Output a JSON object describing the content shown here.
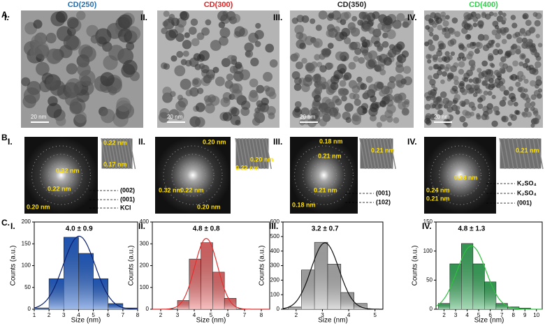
{
  "panel_labels": {
    "a": "A.",
    "b": "B.",
    "c": "C."
  },
  "panel_a": [
    {
      "title": "CD(250)",
      "title_color": "#1f6fb5",
      "numeral": "I.",
      "scale_bar": "20 nm"
    },
    {
      "title": "CD(300)",
      "title_color": "#e02020",
      "numeral": "II.",
      "scale_bar": "20 nm"
    },
    {
      "title": "CD(350)",
      "title_color": "#222222",
      "numeral": "III.",
      "scale_bar": "20 nm"
    },
    {
      "title": "CD(400)",
      "title_color": "#2fd04a",
      "numeral": "IV.",
      "scale_bar": "20 nm"
    }
  ],
  "panel_b": [
    {
      "numeral": "I.",
      "labels": [
        "0.22 nm",
        "0.17 nm",
        "0.32 nm",
        "0.22 nm",
        "0.20 nm",
        "(002)",
        "(001)",
        "KCl"
      ]
    },
    {
      "numeral": "II.",
      "labels": [
        "0.20 nm",
        "0.32 nm",
        "0.22 nm",
        "0.20 nm",
        "0.20 nm",
        "0.22 nm"
      ]
    },
    {
      "numeral": "III.",
      "labels": [
        "0.18 nm",
        "0.21 nm",
        "0.21 nm",
        "0.18 nm",
        "0.21 nm",
        "(001)",
        "(102)"
      ]
    },
    {
      "numeral": "IV.",
      "labels": [
        "0.28 nm",
        "0.24 nm",
        "0.21 nm",
        "0.21 nm",
        "K₂SO₄",
        "K₂SO₄",
        "(001)"
      ]
    }
  ],
  "chart_data": [
    {
      "type": "histogram",
      "title": "I.",
      "annotation": "4.0 ± 0.9",
      "x_label": "Size (nm)",
      "y_label": "Counts (a.u.)",
      "color": "#2563d0",
      "line_color": "#0a1f6e",
      "bins": [
        1,
        2,
        3,
        4,
        5,
        6,
        7,
        8
      ],
      "counts": [
        3,
        70,
        165,
        128,
        70,
        13,
        3
      ],
      "xlim": [
        1,
        8
      ],
      "xticks": [
        1,
        2,
        3,
        4,
        5,
        6,
        7,
        8
      ],
      "ylim": [
        0,
        200
      ],
      "yticks": [
        0,
        50,
        100,
        150,
        200
      ]
    },
    {
      "type": "histogram",
      "title": "II.",
      "annotation": "4.8 ± 0.8",
      "x_label": "Size (nm)",
      "y_label": "Counts (a.u.)",
      "color": "#f07070",
      "line_color": "#e03030",
      "bins": [
        3.0,
        3.7,
        4.4,
        5.1,
        5.8,
        6.5
      ],
      "counts": [
        40,
        230,
        305,
        170,
        50
      ],
      "xlim": [
        1.5,
        8.5
      ],
      "xticks": [
        2,
        3,
        4,
        5,
        6,
        7,
        8
      ],
      "ylim": [
        0,
        400
      ],
      "yticks": [
        0,
        100,
        200,
        300,
        400
      ]
    },
    {
      "type": "histogram",
      "title": "III.",
      "annotation": "3.2 ± 0.7",
      "x_label": "Size (nm)",
      "y_label": "Counts (a.u.)",
      "color": "#b8b8b8",
      "line_color": "#111111",
      "bins": [
        1.7,
        2.2,
        2.7,
        3.2,
        3.7,
        4.2,
        4.7
      ],
      "counts": [
        15,
        270,
        460,
        310,
        115,
        40
      ],
      "xlim": [
        1.5,
        5.3
      ],
      "xticks": [
        2,
        3,
        4,
        5
      ],
      "ylim": [
        0,
        600
      ],
      "yticks": [
        0,
        100,
        200,
        300,
        400,
        500,
        600
      ]
    },
    {
      "type": "histogram",
      "title": "IV.",
      "annotation": "4.8 ± 1.3",
      "x_label": "Size (nm)",
      "y_label": "Counts (a.u.)",
      "color": "#3cb060",
      "line_color": "#30c040",
      "bins": [
        1.5,
        2.5,
        3.5,
        4.5,
        5.5,
        6.5,
        7.5,
        8.5,
        9.5
      ],
      "counts": [
        10,
        78,
        113,
        78,
        47,
        10,
        4,
        2
      ],
      "xlim": [
        1.3,
        10.5
      ],
      "xticks": [
        2,
        3,
        4,
        5,
        6,
        7,
        8,
        9,
        10
      ],
      "ylim": [
        0,
        150
      ],
      "yticks": [
        0,
        50,
        100,
        150
      ]
    }
  ]
}
